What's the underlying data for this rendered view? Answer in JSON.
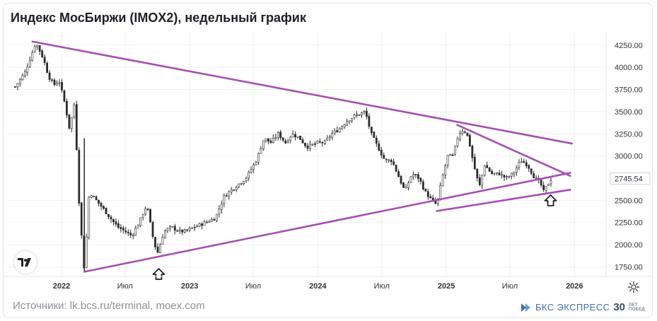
{
  "title": "Индекс МосБиржи (IMOX2), недельный график",
  "footer": {
    "source": "Источники: lk.bcs.ru/terminal, moex.com",
    "brand": "БКС ЭКСПРЕСС",
    "brand_years": "30",
    "brand_sub1": "ЛЕТ",
    "brand_sub2": "ПОБЕД"
  },
  "icons": {
    "logo": "tradingview-logo-icon",
    "settings": "gear-icon",
    "marker": "up-arrow-icon"
  },
  "colors": {
    "trendline": "#a54fb2",
    "candle": "#2b2b2b",
    "grid": "#eef0f3",
    "last_price_bg": "#ffffff"
  },
  "chart_data": {
    "type": "candlestick",
    "title": "Индекс МосБиржи (IMOX2), недельный график",
    "xlabel": "",
    "ylabel": "",
    "x_range": [
      "2021-08-01",
      "2026-04-01"
    ],
    "ylim": [
      1650,
      4320
    ],
    "y_ticks": [
      "4250.00",
      "4000.00",
      "3750.00",
      "3500.00",
      "3250.00",
      "3000.00",
      "2745.54",
      "2500.00",
      "2250.00",
      "2000.00",
      "1750.00"
    ],
    "y_tick_values": [
      4250,
      4000,
      3750,
      3500,
      3250,
      3000,
      2745.54,
      2500,
      2250,
      2000,
      1750
    ],
    "x_ticks": [
      {
        "label": "2022",
        "date": "2022-01-01",
        "year": true
      },
      {
        "label": "Июл",
        "date": "2022-07-01",
        "year": false
      },
      {
        "label": "2023",
        "date": "2023-01-01",
        "year": true
      },
      {
        "label": "Июл",
        "date": "2023-07-01",
        "year": false
      },
      {
        "label": "2024",
        "date": "2024-01-01",
        "year": true
      },
      {
        "label": "Июл",
        "date": "2024-07-01",
        "year": false
      },
      {
        "label": "2025",
        "date": "2025-01-01",
        "year": true
      },
      {
        "label": "Июл",
        "date": "2025-07-01",
        "year": false
      },
      {
        "label": "2026",
        "date": "2026-01-01",
        "year": true
      }
    ],
    "last_price": 2745.54,
    "close_path": [
      [
        "2021-08-22",
        3780
      ],
      [
        "2021-09-20",
        3950
      ],
      [
        "2021-10-20",
        4280
      ],
      [
        "2021-11-10",
        4100
      ],
      [
        "2021-11-25",
        3900
      ],
      [
        "2021-12-10",
        3800
      ],
      [
        "2021-12-25",
        3850
      ],
      [
        "2022-01-10",
        3600
      ],
      [
        "2022-01-24",
        3300
      ],
      [
        "2022-02-07",
        3600
      ],
      [
        "2022-02-21",
        2400
      ],
      [
        "2022-03-07",
        1700
      ],
      [
        "2022-03-21",
        2600
      ],
      [
        "2022-04-10",
        2500
      ],
      [
        "2022-05-01",
        2400
      ],
      [
        "2022-05-20",
        2300
      ],
      [
        "2022-06-10",
        2200
      ],
      [
        "2022-07-01",
        2150
      ],
      [
        "2022-07-20",
        2100
      ],
      [
        "2022-08-10",
        2250
      ],
      [
        "2022-09-01",
        2450
      ],
      [
        "2022-09-20",
        2050
      ],
      [
        "2022-10-01",
        1900
      ],
      [
        "2022-10-20",
        2150
      ],
      [
        "2022-11-10",
        2200
      ],
      [
        "2022-12-01",
        2150
      ],
      [
        "2022-12-20",
        2150
      ],
      [
        "2023-01-15",
        2200
      ],
      [
        "2023-02-15",
        2250
      ],
      [
        "2023-03-15",
        2300
      ],
      [
        "2023-04-10",
        2550
      ],
      [
        "2023-05-10",
        2650
      ],
      [
        "2023-06-10",
        2750
      ],
      [
        "2023-07-10",
        2950
      ],
      [
        "2023-08-01",
        3200
      ],
      [
        "2023-08-20",
        3150
      ],
      [
        "2023-09-10",
        3250
      ],
      [
        "2023-10-01",
        3150
      ],
      [
        "2023-10-20",
        3250
      ],
      [
        "2023-11-10",
        3200
      ],
      [
        "2023-12-01",
        3100
      ],
      [
        "2024-01-01",
        3150
      ],
      [
        "2024-01-20",
        3150
      ],
      [
        "2024-02-10",
        3250
      ],
      [
        "2024-03-01",
        3300
      ],
      [
        "2024-03-25",
        3400
      ],
      [
        "2024-04-15",
        3450
      ],
      [
        "2024-05-15",
        3500
      ],
      [
        "2024-06-01",
        3250
      ],
      [
        "2024-06-20",
        3100
      ],
      [
        "2024-07-10",
        2950
      ],
      [
        "2024-07-30",
        2950
      ],
      [
        "2024-08-20",
        2750
      ],
      [
        "2024-09-05",
        2600
      ],
      [
        "2024-09-25",
        2800
      ],
      [
        "2024-10-15",
        2750
      ],
      [
        "2024-11-01",
        2600
      ],
      [
        "2024-11-20",
        2500
      ],
      [
        "2024-12-05",
        2450
      ],
      [
        "2024-12-20",
        2750
      ],
      [
        "2025-01-05",
        3000
      ],
      [
        "2025-01-20",
        3000
      ],
      [
        "2025-02-05",
        3250
      ],
      [
        "2025-02-20",
        3300
      ],
      [
        "2025-03-05",
        3200
      ],
      [
        "2025-03-20",
        2900
      ],
      [
        "2025-04-05",
        2650
      ],
      [
        "2025-04-20",
        2900
      ],
      [
        "2025-05-10",
        2800
      ],
      [
        "2025-06-01",
        2800
      ],
      [
        "2025-06-20",
        2750
      ],
      [
        "2025-07-10",
        2800
      ],
      [
        "2025-08-01",
        2950
      ],
      [
        "2025-08-20",
        2900
      ],
      [
        "2025-09-10",
        2750
      ],
      [
        "2025-09-25",
        2700
      ],
      [
        "2025-10-05",
        2600
      ],
      [
        "2025-10-20",
        2700
      ],
      [
        "2025-10-28",
        2745.54
      ]
    ],
    "trendlines": [
      {
        "name": "upper",
        "from": [
          "2021-10-10",
          4290
        ],
        "to": [
          "2025-12-25",
          3140
        ]
      },
      {
        "name": "lower",
        "from": [
          "2022-03-07",
          1695
        ],
        "to": [
          "2025-12-20",
          2810
        ]
      },
      {
        "name": "inner-upper",
        "from": [
          "2025-02-01",
          3350
        ],
        "to": [
          "2025-12-20",
          2775
        ]
      },
      {
        "name": "inner-lower",
        "from": [
          "2024-12-05",
          2380
        ],
        "to": [
          "2025-12-20",
          2620
        ]
      }
    ],
    "markers": [
      {
        "type": "up-arrow",
        "date": "2022-10-05",
        "value": 1650
      },
      {
        "type": "up-arrow",
        "date": "2025-10-25",
        "value": 2480
      }
    ]
  }
}
